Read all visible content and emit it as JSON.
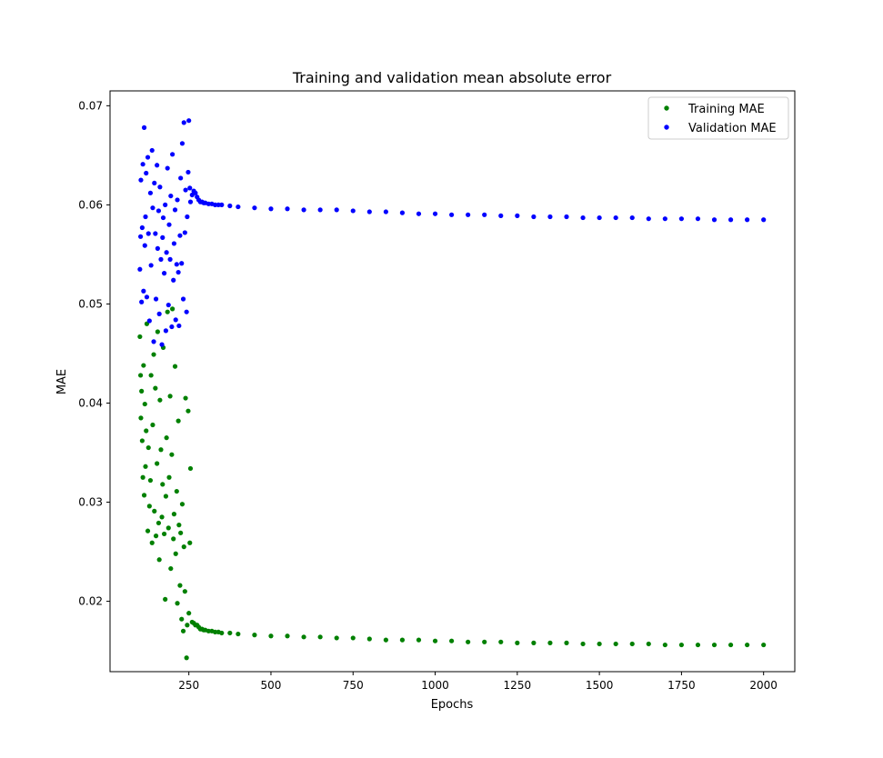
{
  "chart_data": {
    "type": "scatter",
    "title": "Training and validation mean absolute error",
    "xlabel": "Epochs",
    "ylabel": "MAE",
    "xlim": [
      10,
      2095
    ],
    "ylim": [
      0.0129,
      0.0715
    ],
    "xticks": [
      250,
      500,
      750,
      1000,
      1250,
      1500,
      1750,
      2000
    ],
    "xtick_labels": [
      "250",
      "500",
      "750",
      "1000",
      "1250",
      "1500",
      "1750",
      "2000"
    ],
    "yticks": [
      0.02,
      0.03,
      0.04,
      0.05,
      0.06,
      0.07
    ],
    "ytick_labels": [
      "0.02",
      "0.03",
      "0.04",
      "0.05",
      "0.06",
      "0.07"
    ],
    "grid": false,
    "legend_position": "upper right",
    "series": [
      {
        "name": "Training MAE",
        "color": "#008000",
        "marker": "dot",
        "x": [
          101,
          103,
          104,
          106,
          108,
          110,
          112,
          114,
          116,
          118,
          120,
          122,
          125,
          127,
          130,
          133,
          135,
          138,
          140,
          143,
          145,
          148,
          150,
          153,
          155,
          158,
          160,
          162,
          165,
          168,
          170,
          172,
          175,
          178,
          180,
          182,
          185,
          188,
          190,
          193,
          195,
          198,
          200,
          203,
          205,
          208,
          210,
          213,
          215,
          218,
          220,
          223,
          225,
          228,
          230,
          233,
          235,
          238,
          240,
          243,
          245,
          248,
          250,
          253,
          255,
          260,
          265,
          270,
          275,
          280,
          285,
          290,
          295,
          300,
          310,
          320,
          330,
          340,
          350,
          375,
          400,
          450,
          500,
          550,
          600,
          650,
          700,
          750,
          800,
          850,
          900,
          950,
          1000,
          1050,
          1100,
          1150,
          1200,
          1250,
          1300,
          1350,
          1400,
          1450,
          1500,
          1550,
          1600,
          1650,
          1700,
          1750,
          1800,
          1850,
          1900,
          1950,
          2000
        ],
        "y": [
          0.0467,
          0.0428,
          0.0385,
          0.0412,
          0.0362,
          0.0325,
          0.0438,
          0.0307,
          0.0399,
          0.0336,
          0.0372,
          0.048,
          0.0271,
          0.0355,
          0.0296,
          0.0322,
          0.0428,
          0.0259,
          0.0378,
          0.0449,
          0.0291,
          0.0415,
          0.0266,
          0.0339,
          0.0472,
          0.0279,
          0.0242,
          0.0403,
          0.0353,
          0.0285,
          0.0318,
          0.0456,
          0.0268,
          0.0202,
          0.0306,
          0.0365,
          0.0492,
          0.0274,
          0.0325,
          0.0407,
          0.0233,
          0.0348,
          0.0495,
          0.0263,
          0.0288,
          0.0437,
          0.0248,
          0.0311,
          0.0198,
          0.0382,
          0.0277,
          0.0216,
          0.0269,
          0.0182,
          0.0298,
          0.017,
          0.0255,
          0.021,
          0.0405,
          0.0143,
          0.0176,
          0.0392,
          0.0188,
          0.0259,
          0.0334,
          0.0179,
          0.0178,
          0.0176,
          0.0176,
          0.0174,
          0.0172,
          0.0172,
          0.0171,
          0.0171,
          0.017,
          0.017,
          0.0169,
          0.0169,
          0.0168,
          0.0168,
          0.0167,
          0.0166,
          0.0165,
          0.0165,
          0.0164,
          0.0164,
          0.0163,
          0.0163,
          0.0162,
          0.0161,
          0.0161,
          0.0161,
          0.016,
          0.016,
          0.0159,
          0.0159,
          0.0159,
          0.0158,
          0.0158,
          0.0158,
          0.0158,
          0.0157,
          0.0157,
          0.0157,
          0.0157,
          0.0157,
          0.0156,
          0.0156,
          0.0156,
          0.0156,
          0.0156,
          0.0156,
          0.0156
        ]
      },
      {
        "name": "Validation MAE",
        "color": "#0000ff",
        "marker": "dot",
        "x": [
          101,
          103,
          104,
          106,
          108,
          110,
          112,
          114,
          116,
          118,
          120,
          122,
          125,
          127,
          130,
          133,
          135,
          138,
          140,
          143,
          145,
          148,
          150,
          153,
          155,
          158,
          160,
          162,
          165,
          168,
          170,
          172,
          175,
          178,
          180,
          182,
          185,
          188,
          190,
          193,
          195,
          198,
          200,
          203,
          205,
          208,
          210,
          213,
          215,
          218,
          220,
          223,
          225,
          228,
          230,
          233,
          235,
          238,
          240,
          243,
          245,
          248,
          250,
          253,
          255,
          260,
          265,
          270,
          275,
          280,
          285,
          290,
          295,
          300,
          310,
          320,
          330,
          340,
          350,
          375,
          400,
          450,
          500,
          550,
          600,
          650,
          700,
          750,
          800,
          850,
          900,
          950,
          1000,
          1050,
          1100,
          1150,
          1200,
          1250,
          1300,
          1350,
          1400,
          1450,
          1500,
          1550,
          1600,
          1650,
          1700,
          1750,
          1800,
          1850,
          1900,
          1950,
          2000
        ],
        "y": [
          0.0535,
          0.0568,
          0.0625,
          0.0502,
          0.0577,
          0.0641,
          0.0513,
          0.0678,
          0.0559,
          0.0588,
          0.0632,
          0.0507,
          0.0648,
          0.0571,
          0.0483,
          0.0612,
          0.0539,
          0.0655,
          0.0597,
          0.0462,
          0.0622,
          0.0571,
          0.0505,
          0.064,
          0.0556,
          0.0594,
          0.049,
          0.0618,
          0.0545,
          0.0459,
          0.0567,
          0.0587,
          0.0531,
          0.06,
          0.0473,
          0.0552,
          0.0637,
          0.0499,
          0.058,
          0.0545,
          0.0609,
          0.0477,
          0.0651,
          0.0524,
          0.0561,
          0.0595,
          0.0484,
          0.054,
          0.0605,
          0.0532,
          0.0478,
          0.0569,
          0.0627,
          0.0541,
          0.0662,
          0.0505,
          0.0683,
          0.0572,
          0.0615,
          0.0492,
          0.0588,
          0.0633,
          0.0685,
          0.0617,
          0.0603,
          0.061,
          0.0614,
          0.0612,
          0.0608,
          0.0605,
          0.0603,
          0.0603,
          0.0602,
          0.0602,
          0.0601,
          0.0601,
          0.06,
          0.06,
          0.06,
          0.0599,
          0.0598,
          0.0597,
          0.0596,
          0.0596,
          0.0595,
          0.0595,
          0.0595,
          0.0594,
          0.0593,
          0.0593,
          0.0592,
          0.0591,
          0.0591,
          0.059,
          0.059,
          0.059,
          0.0589,
          0.0589,
          0.0588,
          0.0588,
          0.0588,
          0.0587,
          0.0587,
          0.0587,
          0.0587,
          0.0586,
          0.0586,
          0.0586,
          0.0586,
          0.0585,
          0.0585,
          0.0585,
          0.0585
        ]
      }
    ]
  }
}
